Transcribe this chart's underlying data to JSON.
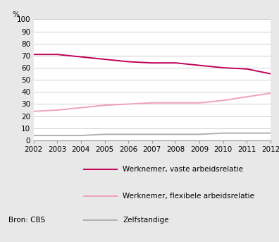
{
  "years": [
    2002,
    2003,
    2004,
    2005,
    2006,
    2007,
    2008,
    2009,
    2010,
    2011,
    2012
  ],
  "vaste": [
    71,
    71,
    69,
    67,
    65,
    64,
    64,
    62,
    60,
    59,
    55
  ],
  "flexibele": [
    24,
    25,
    27,
    29,
    30,
    31,
    31,
    31,
    33,
    36,
    39
  ],
  "zelfstandige": [
    4,
    4,
    4,
    5,
    5,
    5,
    5,
    5,
    6,
    6,
    6
  ],
  "vaste_color": "#c0005a",
  "flexibele_color": "#f0a0c0",
  "zelfstandige_color": "#b0b0b0",
  "ylabel": "%",
  "ylim": [
    0,
    100
  ],
  "yticks": [
    0,
    10,
    20,
    30,
    40,
    50,
    60,
    70,
    80,
    90,
    100
  ],
  "legend_vaste": "Werknemer, vaste arbeidsrelatie",
  "legend_flexibele": "Werknemer, flexibele arbeidsrelatie",
  "legend_zelfstandige": "Zelfstandige",
  "source_text": "Bron: CBS",
  "bg_color": "#e8e8e8",
  "plot_bg_color": "#ffffff",
  "grid_color": "#c8c8c8",
  "line_width": 1.4,
  "tick_fontsize": 7.5,
  "legend_fontsize": 7.5
}
